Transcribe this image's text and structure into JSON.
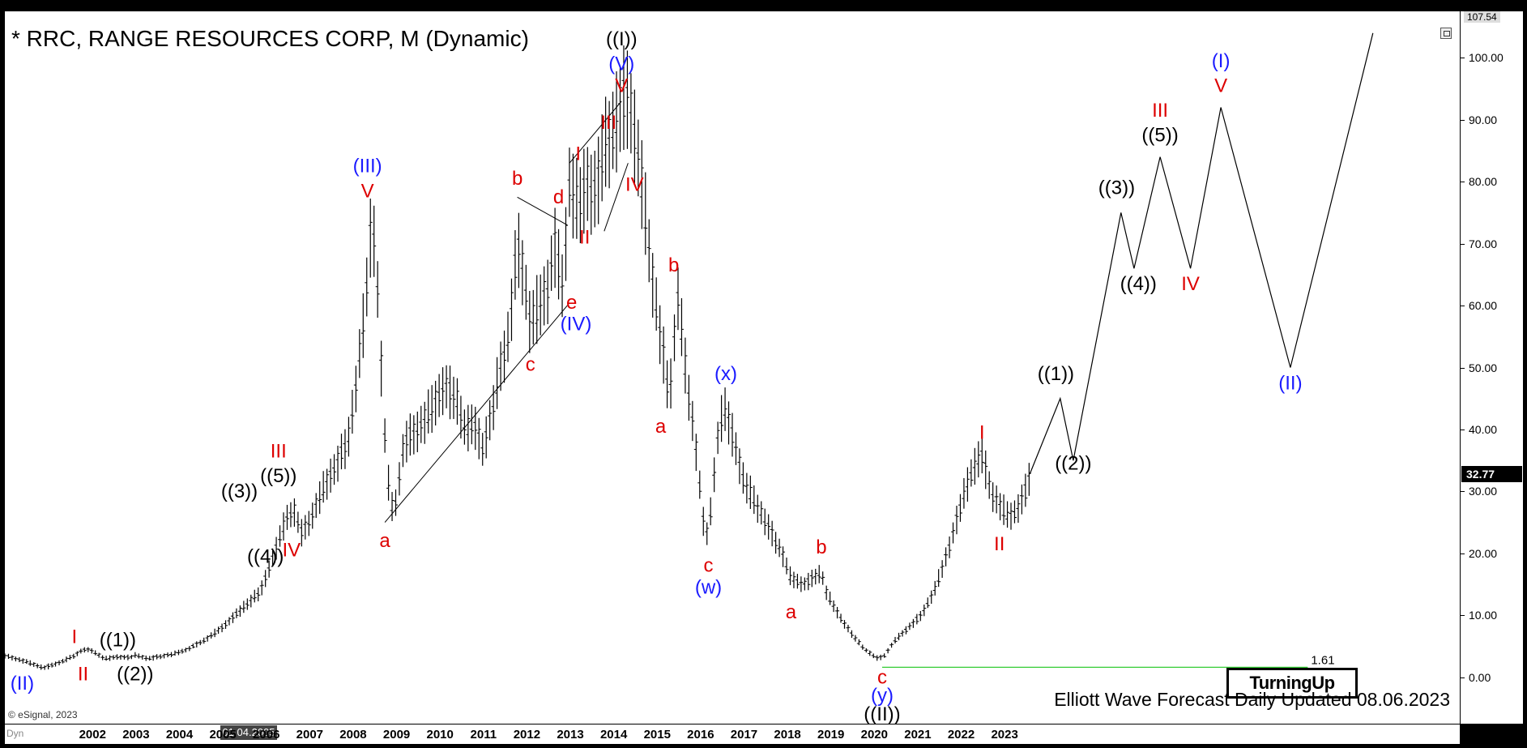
{
  "chart_data": {
    "type": "ohlc",
    "title": "* RRC, RANGE RESOURCES CORP, M (Dynamic)",
    "footer": "Elliott Wave Forecast Daily Updated 08.06.2023",
    "copyright": "© eSignal, 2023",
    "logo_text": "TurningUp",
    "last_price": "32.77",
    "top_price": "107.54",
    "cursor_date": "01.04.2005",
    "dyn_label": "Dyn",
    "fib_level": {
      "label": "1.61",
      "value": 1.61,
      "from": 2020.2,
      "to": 2030.0,
      "color": "#33cc33"
    },
    "xlim": [
      2000.0,
      2033.5
    ],
    "ylim": [
      -7.5,
      107.5
    ],
    "x_ticks": [
      "2002",
      "2003",
      "2004",
      "2005",
      "2006",
      "2007",
      "2008",
      "2009",
      "2010",
      "2011",
      "2012",
      "2013",
      "2014",
      "2015",
      "2016",
      "2017",
      "2018",
      "2019",
      "2020",
      "2021",
      "2022",
      "2023"
    ],
    "y_ticks": [
      "0.00",
      "10.00",
      "20.00",
      "30.00",
      "40.00",
      "50.00",
      "60.00",
      "70.00",
      "80.00",
      "90.00",
      "100.00"
    ],
    "price_path": [
      [
        2000.0,
        3.5
      ],
      [
        2000.5,
        2.5
      ],
      [
        2000.9,
        1.5
      ],
      [
        2001.3,
        2.5
      ],
      [
        2001.6,
        3.5
      ],
      [
        2001.8,
        4.5
      ],
      [
        2002.0,
        4.3
      ],
      [
        2002.3,
        3.0
      ],
      [
        2002.6,
        3.3
      ],
      [
        2002.9,
        3.2
      ],
      [
        2003.0,
        3.6
      ],
      [
        2003.3,
        3.0
      ],
      [
        2003.6,
        3.4
      ],
      [
        2003.9,
        3.8
      ],
      [
        2004.2,
        4.5
      ],
      [
        2004.6,
        6.0
      ],
      [
        2005.0,
        8.0
      ],
      [
        2005.3,
        10.0
      ],
      [
        2005.6,
        12.0
      ],
      [
        2005.9,
        14.0
      ],
      [
        2006.1,
        18.0
      ],
      [
        2006.3,
        22.0
      ],
      [
        2006.5,
        26.0
      ],
      [
        2006.7,
        27.0
      ],
      [
        2006.8,
        23.0
      ],
      [
        2007.0,
        25.0
      ],
      [
        2007.3,
        30.0
      ],
      [
        2007.6,
        34.0
      ],
      [
        2007.9,
        38.0
      ],
      [
        2008.1,
        48.0
      ],
      [
        2008.3,
        60.0
      ],
      [
        2008.45,
        74.0
      ],
      [
        2008.55,
        68.0
      ],
      [
        2008.7,
        45.0
      ],
      [
        2008.8,
        33.0
      ],
      [
        2008.95,
        26.0
      ],
      [
        2009.2,
        38.0
      ],
      [
        2009.5,
        40.0
      ],
      [
        2009.8,
        43.0
      ],
      [
        2010.1,
        47.0
      ],
      [
        2010.4,
        45.0
      ],
      [
        2010.6,
        40.0
      ],
      [
        2010.8,
        41.0
      ],
      [
        2011.0,
        37.0
      ],
      [
        2011.2,
        42.0
      ],
      [
        2011.4,
        50.0
      ],
      [
        2011.6,
        55.0
      ],
      [
        2011.8,
        70.0
      ],
      [
        2011.95,
        65.0
      ],
      [
        2012.1,
        57.0
      ],
      [
        2012.3,
        60.0
      ],
      [
        2012.5,
        63.0
      ],
      [
        2012.65,
        70.0
      ],
      [
        2012.85,
        63.0
      ],
      [
        2013.0,
        80.0
      ],
      [
        2013.2,
        76.0
      ],
      [
        2013.4,
        80.0
      ],
      [
        2013.6,
        78.0
      ],
      [
        2013.8,
        86.0
      ],
      [
        2014.0,
        88.0
      ],
      [
        2014.2,
        93.0
      ],
      [
        2014.35,
        94.0
      ],
      [
        2014.5,
        88.0
      ],
      [
        2014.7,
        78.0
      ],
      [
        2014.9,
        65.0
      ],
      [
        2015.1,
        55.0
      ],
      [
        2015.3,
        45.0
      ],
      [
        2015.5,
        62.0
      ],
      [
        2015.7,
        48.0
      ],
      [
        2015.9,
        38.0
      ],
      [
        2016.1,
        24.0
      ],
      [
        2016.2,
        23.0
      ],
      [
        2016.4,
        38.0
      ],
      [
        2016.55,
        44.0
      ],
      [
        2016.8,
        38.0
      ],
      [
        2017.0,
        32.0
      ],
      [
        2017.3,
        28.0
      ],
      [
        2017.6,
        24.0
      ],
      [
        2017.9,
        20.0
      ],
      [
        2018.1,
        16.0
      ],
      [
        2018.4,
        15.0
      ],
      [
        2018.6,
        16.0
      ],
      [
        2018.8,
        17.0
      ],
      [
        2018.9,
        14.0
      ],
      [
        2019.2,
        10.0
      ],
      [
        2019.5,
        7.0
      ],
      [
        2019.8,
        4.5
      ],
      [
        2020.1,
        3.0
      ],
      [
        2020.25,
        3.5
      ],
      [
        2020.5,
        6.0
      ],
      [
        2020.8,
        8.0
      ],
      [
        2021.1,
        10.0
      ],
      [
        2021.4,
        14.0
      ],
      [
        2021.7,
        20.0
      ],
      [
        2021.9,
        25.0
      ],
      [
        2022.1,
        30.0
      ],
      [
        2022.3,
        34.0
      ],
      [
        2022.5,
        36.0
      ],
      [
        2022.7,
        30.0
      ],
      [
        2022.9,
        28.0
      ],
      [
        2023.1,
        26.0
      ],
      [
        2023.3,
        27.0
      ],
      [
        2023.5,
        30.0
      ],
      [
        2023.6,
        32.8
      ]
    ],
    "projection_path": [
      [
        2023.6,
        32.8
      ],
      [
        2024.3,
        45.0
      ],
      [
        2024.6,
        35.0
      ],
      [
        2025.7,
        75.0
      ],
      [
        2026.0,
        66.0
      ],
      [
        2026.6,
        84.0
      ],
      [
        2027.3,
        66.0
      ],
      [
        2028.0,
        92.0
      ],
      [
        2029.6,
        50.0
      ],
      [
        2031.5,
        104.0
      ]
    ],
    "trendlines": [
      {
        "from": [
          2008.75,
          25.0
        ],
        "to": [
          2012.95,
          60.0
        ]
      },
      {
        "from": [
          2011.8,
          77.5
        ],
        "to": [
          2012.95,
          73.0
        ]
      },
      {
        "from": [
          2013.0,
          83.0
        ],
        "to": [
          2014.2,
          93.0
        ]
      },
      {
        "from": [
          2013.8,
          72.0
        ],
        "to": [
          2014.35,
          83.0
        ]
      }
    ],
    "wave_labels": [
      {
        "text": "((I))",
        "x": 2014.2,
        "y": 102.0,
        "color": "#000000"
      },
      {
        "text": "(V)",
        "x": 2014.2,
        "y": 98.0,
        "color": "#1a1aff"
      },
      {
        "text": "V",
        "x": 2014.2,
        "y": 94.5,
        "color": "#dd0000"
      },
      {
        "text": "III",
        "x": 2013.9,
        "y": 88.5,
        "color": "#dd0000"
      },
      {
        "text": "I",
        "x": 2013.2,
        "y": 83.5,
        "color": "#dd0000"
      },
      {
        "text": "IV",
        "x": 2014.5,
        "y": 78.5,
        "color": "#dd0000"
      },
      {
        "text": "II",
        "x": 2013.35,
        "y": 70.0,
        "color": "#dd0000"
      },
      {
        "text": "b",
        "x": 2011.8,
        "y": 79.5,
        "color": "#dd0000"
      },
      {
        "text": "d",
        "x": 2012.75,
        "y": 76.5,
        "color": "#dd0000"
      },
      {
        "text": "e",
        "x": 2013.05,
        "y": 59.5,
        "color": "#dd0000"
      },
      {
        "text": "(IV)",
        "x": 2013.15,
        "y": 56.0,
        "color": "#1a1aff"
      },
      {
        "text": "c",
        "x": 2012.1,
        "y": 49.5,
        "color": "#dd0000"
      },
      {
        "text": "a",
        "x": 2008.75,
        "y": 21.0,
        "color": "#dd0000"
      },
      {
        "text": "(III)",
        "x": 2008.35,
        "y": 81.5,
        "color": "#1a1aff"
      },
      {
        "text": "V",
        "x": 2008.35,
        "y": 77.5,
        "color": "#dd0000"
      },
      {
        "text": "III",
        "x": 2006.3,
        "y": 35.5,
        "color": "#dd0000"
      },
      {
        "text": "((5))",
        "x": 2006.3,
        "y": 31.5,
        "color": "#000000"
      },
      {
        "text": "((3))",
        "x": 2005.4,
        "y": 29.0,
        "color": "#000000"
      },
      {
        "text": "((4))",
        "x": 2006.0,
        "y": 18.5,
        "color": "#000000"
      },
      {
        "text": "IV",
        "x": 2006.6,
        "y": 19.5,
        "color": "#dd0000"
      },
      {
        "text": "I",
        "x": 2001.6,
        "y": 5.5,
        "color": "#dd0000"
      },
      {
        "text": "((1))",
        "x": 2002.6,
        "y": 5.0,
        "color": "#000000"
      },
      {
        "text": "II",
        "x": 2001.8,
        "y": -0.5,
        "color": "#dd0000"
      },
      {
        "text": "((2))",
        "x": 2003.0,
        "y": -0.5,
        "color": "#000000"
      },
      {
        "text": "(II)",
        "x": 2000.4,
        "y": -2.0,
        "color": "#1a1aff"
      },
      {
        "text": "b",
        "x": 2015.4,
        "y": 65.5,
        "color": "#dd0000"
      },
      {
        "text": "a",
        "x": 2015.1,
        "y": 39.5,
        "color": "#dd0000"
      },
      {
        "text": "(x)",
        "x": 2016.6,
        "y": 48.0,
        "color": "#1a1aff"
      },
      {
        "text": "c",
        "x": 2016.2,
        "y": 17.0,
        "color": "#dd0000"
      },
      {
        "text": "(w)",
        "x": 2016.2,
        "y": 13.5,
        "color": "#1a1aff"
      },
      {
        "text": "b",
        "x": 2018.8,
        "y": 20.0,
        "color": "#dd0000"
      },
      {
        "text": "a",
        "x": 2018.1,
        "y": 9.5,
        "color": "#dd0000"
      },
      {
        "text": "c",
        "x": 2020.2,
        "y": -1.0,
        "color": "#dd0000"
      },
      {
        "text": "(y)",
        "x": 2020.2,
        "y": -4.0,
        "color": "#1a1aff"
      },
      {
        "text": "((II))",
        "x": 2020.2,
        "y": -7.0,
        "color": "#000000"
      },
      {
        "text": "I",
        "x": 2022.5,
        "y": 38.5,
        "color": "#dd0000"
      },
      {
        "text": "II",
        "x": 2022.9,
        "y": 20.5,
        "color": "#dd0000"
      },
      {
        "text": "((1))",
        "x": 2024.2,
        "y": 48.0,
        "color": "#000000"
      },
      {
        "text": "((2))",
        "x": 2024.6,
        "y": 33.5,
        "color": "#000000"
      },
      {
        "text": "((3))",
        "x": 2025.6,
        "y": 78.0,
        "color": "#000000"
      },
      {
        "text": "((4))",
        "x": 2026.1,
        "y": 62.5,
        "color": "#000000"
      },
      {
        "text": "III",
        "x": 2026.6,
        "y": 90.5,
        "color": "#dd0000"
      },
      {
        "text": "((5))",
        "x": 2026.6,
        "y": 86.5,
        "color": "#000000"
      },
      {
        "text": "IV",
        "x": 2027.3,
        "y": 62.5,
        "color": "#dd0000"
      },
      {
        "text": "(I)",
        "x": 2028.0,
        "y": 98.5,
        "color": "#1a1aff"
      },
      {
        "text": "V",
        "x": 2028.0,
        "y": 94.5,
        "color": "#dd0000"
      },
      {
        "text": "(II)",
        "x": 2029.6,
        "y": 46.5,
        "color": "#1a1aff"
      }
    ]
  }
}
